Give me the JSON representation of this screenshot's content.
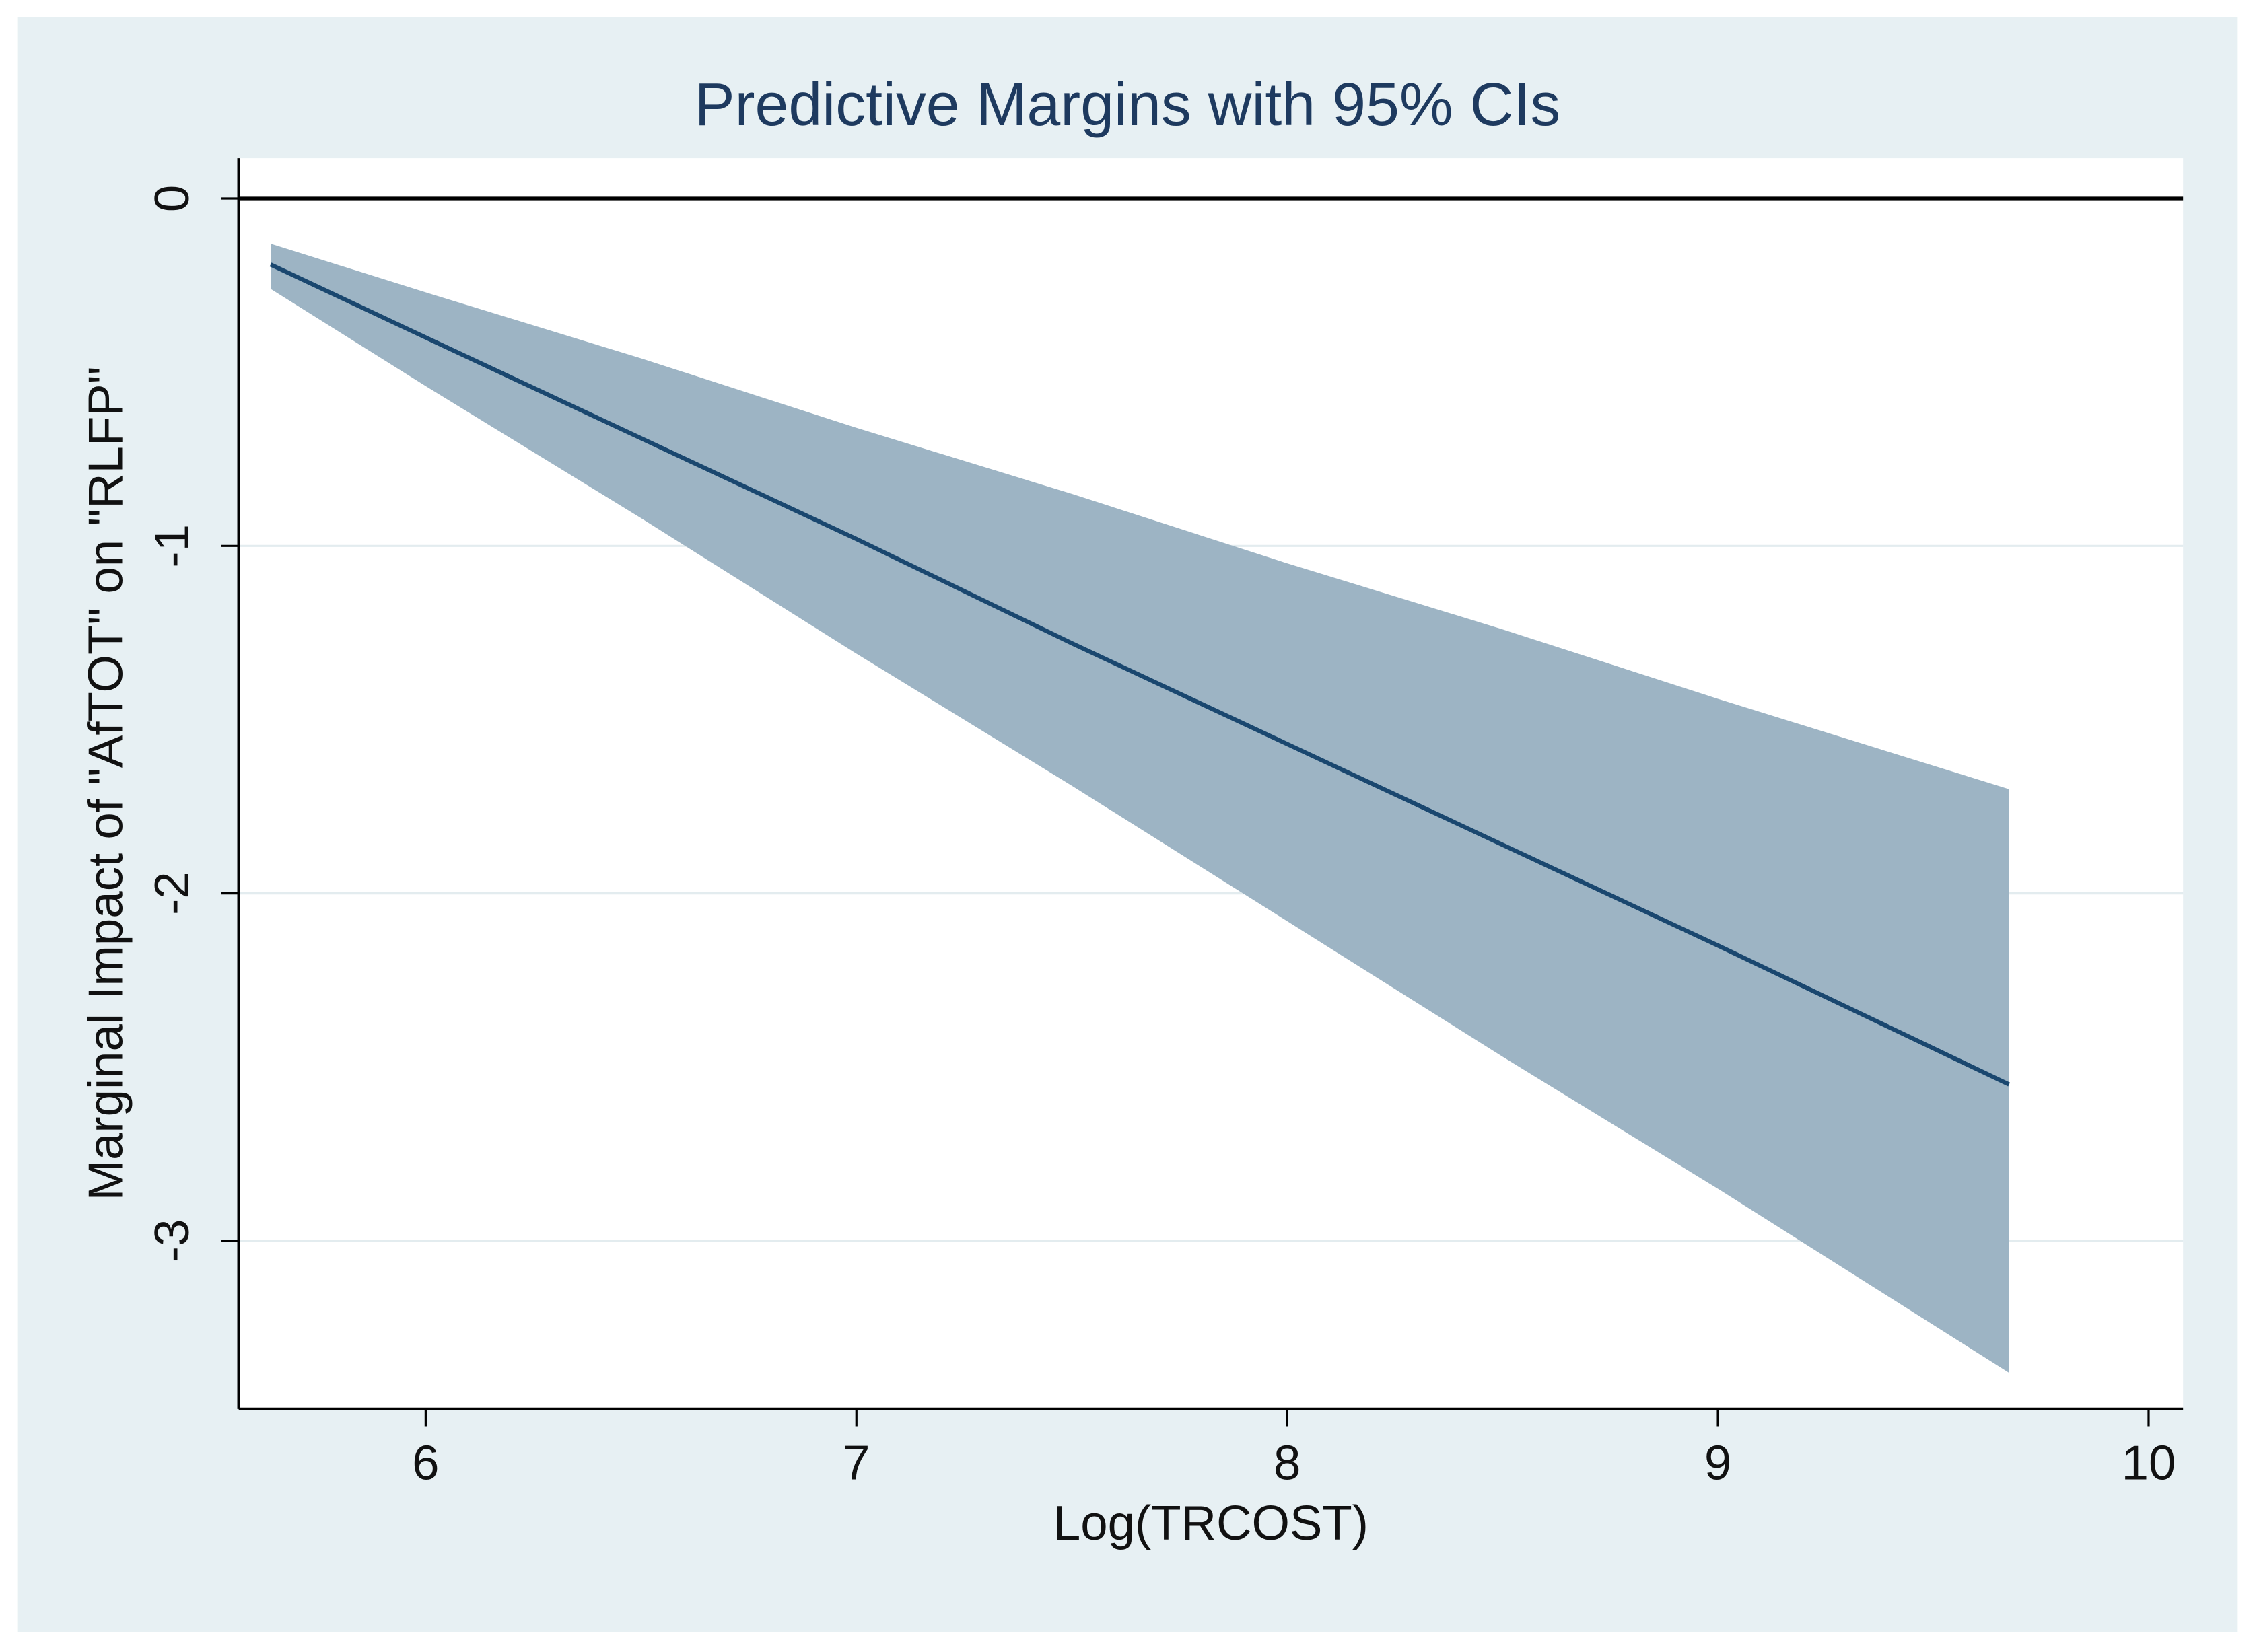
{
  "chart_data": {
    "type": "line-ci",
    "title": "Predictive Margins with 95% CIs",
    "x_label": "Log(TRCOST)",
    "y_label": "Marginal Impact of \"AfTOT\" on \"RLFP\"",
    "x": [
      5.64,
      6,
      6.5,
      7,
      7.5,
      8,
      8.5,
      9,
      9.676
    ],
    "values": [
      -0.19,
      -0.4,
      -0.69,
      -0.98,
      -1.28,
      -1.57,
      -1.86,
      -2.15,
      -2.55
    ],
    "ci_lower": [
      -0.26,
      -0.54,
      -0.92,
      -1.31,
      -1.69,
      -2.08,
      -2.47,
      -2.85,
      -3.38
    ],
    "ci_upper": [
      -0.13,
      -0.27,
      -0.46,
      -0.66,
      -0.85,
      -1.05,
      -1.24,
      -1.44,
      -1.7
    ],
    "line_color": "#1a476f",
    "band_color": "#9db4c4",
    "reference_line": 0,
    "xlim": [
      5.566,
      10.08
    ],
    "ylim": [
      -3.484,
      0.116
    ],
    "xticks": [
      6,
      7,
      8,
      9,
      10
    ],
    "yticks": [
      -3,
      -2,
      -1,
      0
    ],
    "grid": true
  }
}
